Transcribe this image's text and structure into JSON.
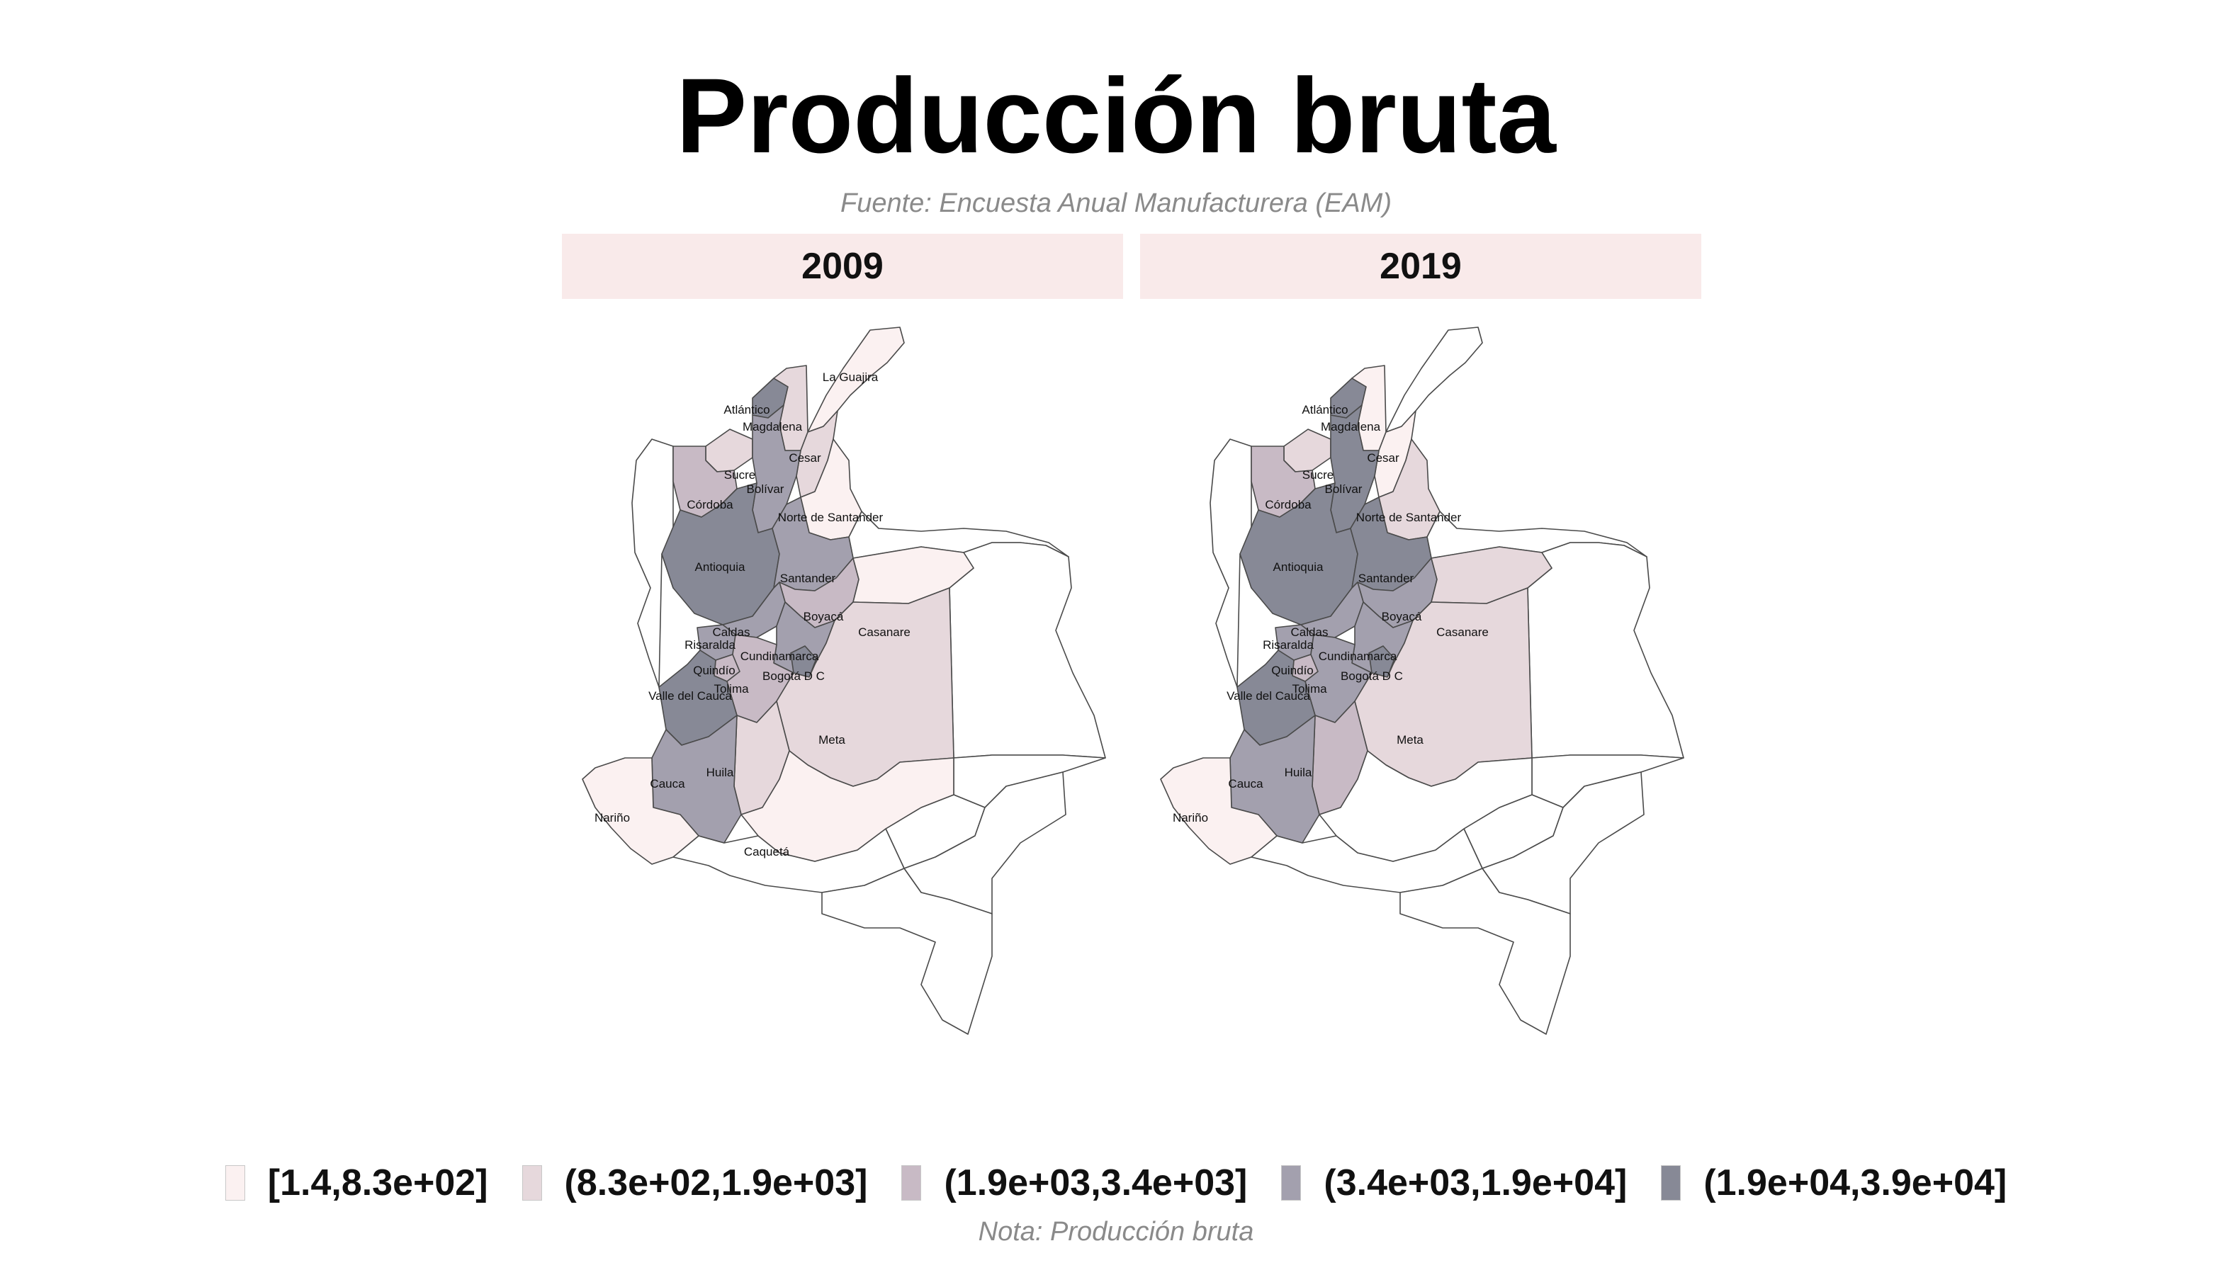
{
  "title": "Producción bruta",
  "subtitle": "Fuente: Encuesta Anual Manufacturera (EAM)",
  "caption": "Nota: Producción bruta",
  "colors": {
    "class1": "#fbf1f1",
    "class2": "#e6d8dc",
    "class3": "#c8bac5",
    "class4": "#a3a0ae",
    "class5": "#878996",
    "nodata": "#ffffff",
    "strip": "#f9eaea"
  },
  "legend": {
    "items": [
      {
        "label": "[1.4,8.3e+02]",
        "class": 1
      },
      {
        "label": "(8.3e+02,1.9e+03]",
        "class": 2
      },
      {
        "label": "(1.9e+03,3.4e+03]",
        "class": 3
      },
      {
        "label": "(3.4e+03,1.9e+04]",
        "class": 4
      },
      {
        "label": "(1.9e+04,3.9e+04]",
        "class": 5
      }
    ]
  },
  "panels": [
    {
      "year": "2009",
      "departments": [
        {
          "id": "guajira",
          "name": "La Guajira",
          "class": 1
        },
        {
          "id": "atlantico",
          "name": "Atlántico",
          "class": 5
        },
        {
          "id": "magdalena",
          "name": "Magdalena",
          "class": 2
        },
        {
          "id": "cesar",
          "name": "Cesar",
          "class": 2
        },
        {
          "id": "sucre",
          "name": "Sucre",
          "class": 2
        },
        {
          "id": "bolivar",
          "name": "Bolívar",
          "class": 4
        },
        {
          "id": "cordoba",
          "name": "Córdoba",
          "class": 3
        },
        {
          "id": "nsantander",
          "name": "Norte de Santander",
          "class": 1
        },
        {
          "id": "antioquia",
          "name": "Antioquia",
          "class": 5
        },
        {
          "id": "santander",
          "name": "Santander",
          "class": 4
        },
        {
          "id": "boyaca",
          "name": "Boyacá",
          "class": 3
        },
        {
          "id": "casanare",
          "name": "Casanare",
          "class": 1
        },
        {
          "id": "caldas",
          "name": "Caldas",
          "class": 4
        },
        {
          "id": "risaralda",
          "name": "Risaralda",
          "class": 4
        },
        {
          "id": "cundinamarca",
          "name": "Cundinamarca",
          "class": 4
        },
        {
          "id": "quindio",
          "name": "Quindío",
          "class": 3
        },
        {
          "id": "bogota",
          "name": "Bogotá D C",
          "class": 5
        },
        {
          "id": "tolima",
          "name": "Tolima",
          "class": 3
        },
        {
          "id": "valle",
          "name": "Valle del Cauca",
          "class": 5
        },
        {
          "id": "meta",
          "name": "Meta",
          "class": 2
        },
        {
          "id": "huila",
          "name": "Huila",
          "class": 2
        },
        {
          "id": "cauca",
          "name": "Cauca",
          "class": 4
        },
        {
          "id": "narino",
          "name": "Nariño",
          "class": 1
        },
        {
          "id": "caqueta",
          "name": "Caquetá",
          "class": 1
        }
      ]
    },
    {
      "year": "2019",
      "departments": [
        {
          "id": "guajira",
          "name": "",
          "class": 0
        },
        {
          "id": "atlantico",
          "name": "Atlántico",
          "class": 5
        },
        {
          "id": "magdalena",
          "name": "Magdalena",
          "class": 1
        },
        {
          "id": "cesar",
          "name": "Cesar",
          "class": 1
        },
        {
          "id": "sucre",
          "name": "Sucre",
          "class": 2
        },
        {
          "id": "bolivar",
          "name": "Bolívar",
          "class": 5
        },
        {
          "id": "cordoba",
          "name": "Córdoba",
          "class": 3
        },
        {
          "id": "nsantander",
          "name": "Norte de Santander",
          "class": 2
        },
        {
          "id": "antioquia",
          "name": "Antioquia",
          "class": 5
        },
        {
          "id": "santander",
          "name": "Santander",
          "class": 5
        },
        {
          "id": "boyaca",
          "name": "Boyacá",
          "class": 4
        },
        {
          "id": "casanare",
          "name": "Casanare",
          "class": 2
        },
        {
          "id": "caldas",
          "name": "Caldas",
          "class": 4
        },
        {
          "id": "risaralda",
          "name": "Risaralda",
          "class": 4
        },
        {
          "id": "cundinamarca",
          "name": "Cundinamarca",
          "class": 4
        },
        {
          "id": "quindio",
          "name": "Quindío",
          "class": 3
        },
        {
          "id": "bogota",
          "name": "Bogotá D C",
          "class": 5
        },
        {
          "id": "tolima",
          "name": "Tolima",
          "class": 4
        },
        {
          "id": "valle",
          "name": "Valle del Cauca",
          "class": 5
        },
        {
          "id": "meta",
          "name": "Meta",
          "class": 2
        },
        {
          "id": "huila",
          "name": "Huila",
          "class": 3
        },
        {
          "id": "cauca",
          "name": "Cauca",
          "class": 4
        },
        {
          "id": "narino",
          "name": "Nariño",
          "class": 1
        },
        {
          "id": "caqueta",
          "name": "",
          "class": 0
        }
      ]
    }
  ]
}
